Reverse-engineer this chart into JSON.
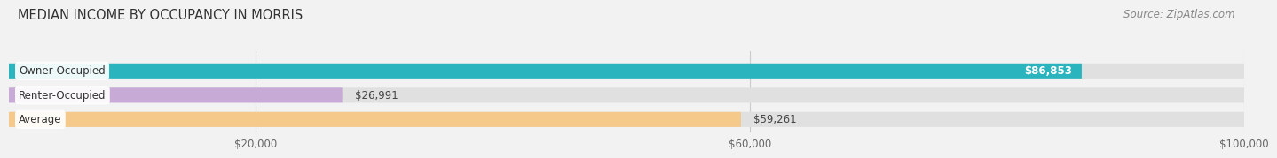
{
  "title": "MEDIAN INCOME BY OCCUPANCY IN MORRIS",
  "source": "Source: ZipAtlas.com",
  "categories": [
    "Owner-Occupied",
    "Renter-Occupied",
    "Average"
  ],
  "values": [
    86853,
    26991,
    59261
  ],
  "bar_colors": [
    "#2ab5be",
    "#c8aad6",
    "#f5c98a"
  ],
  "value_labels": [
    "$86,853",
    "$26,991",
    "$59,261"
  ],
  "value_label_colors": [
    "#ffffff",
    "#555555",
    "#555555"
  ],
  "xlim": [
    0,
    100000
  ],
  "xticks": [
    20000,
    60000,
    100000
  ],
  "xtick_labels": [
    "$20,000",
    "$60,000",
    "$100,000"
  ],
  "background_color": "#f2f2f2",
  "bar_bg_color": "#e0e0e0",
  "title_fontsize": 10.5,
  "source_fontsize": 8.5,
  "label_fontsize": 8.5,
  "value_fontsize": 8.5
}
